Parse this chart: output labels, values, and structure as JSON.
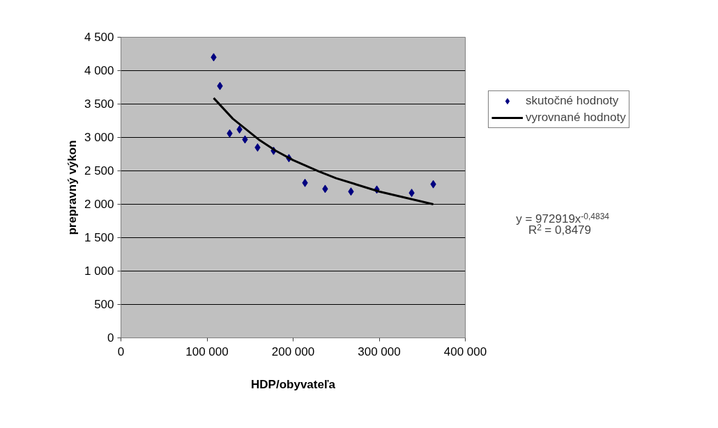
{
  "chart_data": {
    "type": "scatter",
    "xlabel": "HDP/obyvateľa",
    "ylabel": "prepravný výkon",
    "series": [
      {
        "name": "skutočné hodnoty",
        "color": "#000080",
        "marker": "diamond",
        "x": [
          107700,
          115000,
          126300,
          137700,
          144100,
          158700,
          177300,
          195100,
          213800,
          237200,
          267200,
          297200,
          337700,
          362800
        ],
        "values": [
          4200,
          3770,
          3060,
          3120,
          2970,
          2850,
          2800,
          2690,
          2320,
          2230,
          2190,
          2220,
          2170,
          2300
        ]
      },
      {
        "name": "vyrovnané hodnoty",
        "type": "line",
        "color": "#000000",
        "line_style": "solid",
        "x": [
          107700,
          130000,
          160000,
          180000,
          200000,
          230000,
          250000,
          300000,
          362800
        ],
        "values": [
          3590,
          3280,
          2970,
          2800,
          2660,
          2490,
          2390,
          2190,
          2000
        ]
      }
    ],
    "xlim": [
      0,
      400000
    ],
    "ylim": [
      0,
      4500
    ],
    "xticks": [
      0,
      {
        "value": 100000,
        "label": "100 000"
      },
      {
        "value": 200000,
        "label": "200 000"
      },
      {
        "value": 300000,
        "label": "300 000"
      },
      {
        "value": 400000,
        "label": "400 000"
      }
    ],
    "yticks": [
      0,
      500,
      {
        "value": 1000,
        "label": "1 000"
      },
      {
        "value": 1500,
        "label": "1 500"
      },
      {
        "value": 2000,
        "label": "2 000"
      },
      {
        "value": 2500,
        "label": "2 500"
      },
      {
        "value": 3000,
        "label": "3 000"
      },
      {
        "value": 3500,
        "label": "3 500"
      },
      {
        "value": 4000,
        "label": "4 000"
      },
      {
        "value": 4500,
        "label": "4 500"
      }
    ],
    "grid": "y",
    "legend": "right",
    "annotations": [
      "y = 972919x$^{-0,4834}$",
      "R$^{2}$ = 0,8479"
    ]
  }
}
